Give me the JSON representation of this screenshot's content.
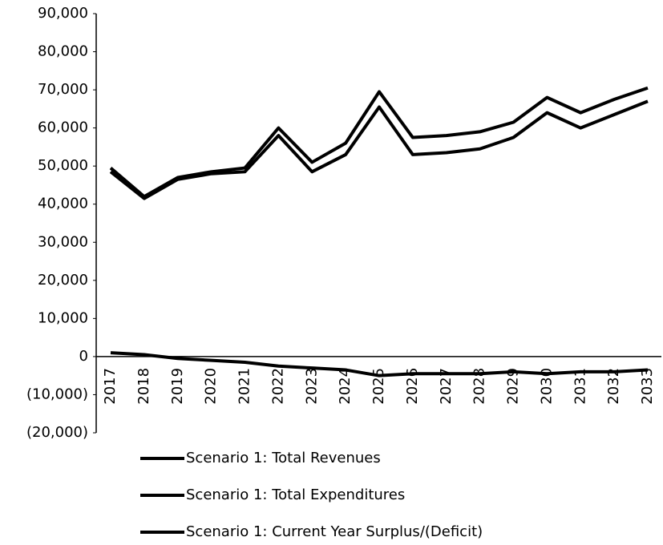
{
  "chart_data": {
    "type": "line",
    "categories": [
      "2017",
      "2018",
      "2019",
      "2020",
      "2021",
      "2022",
      "2023",
      "2024",
      "2025",
      "2026",
      "2027",
      "2028",
      "2029",
      "2030",
      "2031",
      "2032",
      "2033"
    ],
    "series": [
      {
        "name": "Scenario 1: Total Revenues",
        "color": "#000000",
        "values": [
          48500,
          41500,
          46500,
          48000,
          48500,
          58000,
          48500,
          53000,
          65500,
          53000,
          53500,
          54500,
          57500,
          64000,
          60000,
          63500,
          67000
        ]
      },
      {
        "name": "Scenario 1: Total Expenditures",
        "color": "#000000",
        "values": [
          49500,
          42000,
          47000,
          48500,
          49500,
          60000,
          51000,
          56000,
          69500,
          57500,
          58000,
          59000,
          61500,
          68000,
          64000,
          67500,
          70500
        ]
      },
      {
        "name": "Scenario 1: Current Year Surplus/(Deficit)",
        "color": "#000000",
        "values": [
          1000,
          500,
          -500,
          -1000,
          -1500,
          -2500,
          -3000,
          -3500,
          -5000,
          -4500,
          -4500,
          -4500,
          -4000,
          -4500,
          -4000,
          -4000,
          -3500
        ]
      }
    ],
    "ylim": [
      -20000,
      90000
    ],
    "yticks": [
      {
        "value": -20000,
        "label": "(20,000)"
      },
      {
        "value": -10000,
        "label": "(10,000)"
      },
      0,
      {
        "value": 10000,
        "label": "10,000"
      },
      {
        "value": 20000,
        "label": "20,000"
      },
      {
        "value": 30000,
        "label": "30,000"
      },
      {
        "value": 40000,
        "label": "40,000"
      },
      {
        "value": 50000,
        "label": "50,000"
      },
      {
        "value": 60000,
        "label": "60,000"
      },
      {
        "value": 70000,
        "label": "70,000"
      },
      {
        "value": 80000,
        "label": "80,000"
      },
      {
        "value": 90000,
        "label": "90,000"
      }
    ],
    "grid": false
  }
}
